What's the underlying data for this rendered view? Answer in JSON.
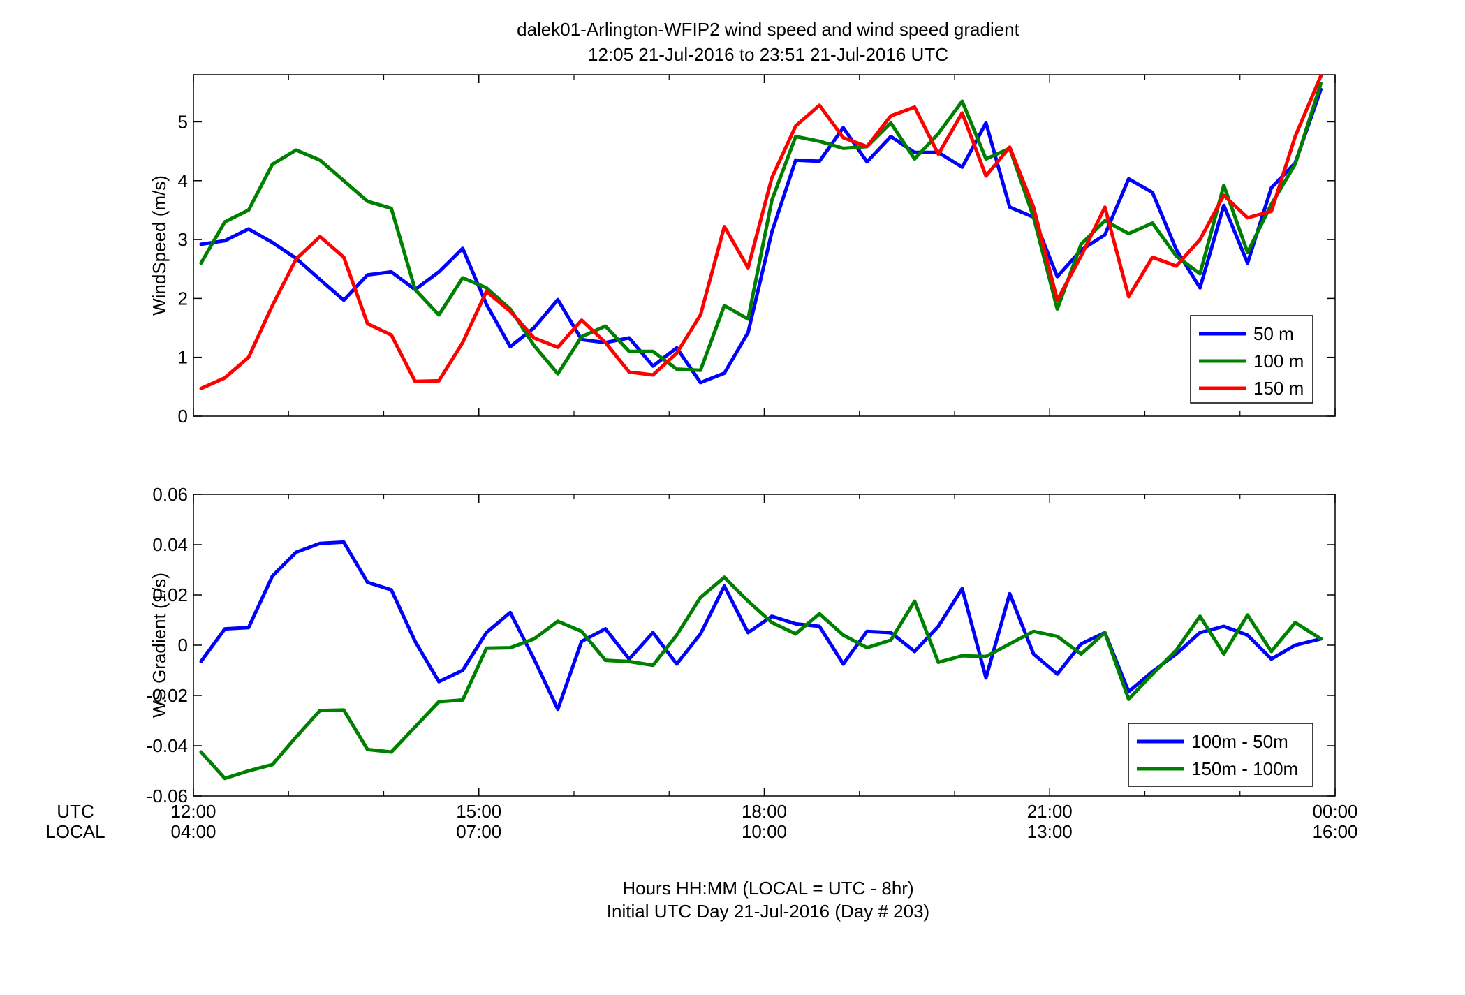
{
  "figure": {
    "title_line1": "dalek01-Arlington-WFIP2  wind speed and wind speed gradient",
    "title_line2": "12:05 21-Jul-2016 to 23:51 21-Jul-2016  UTC",
    "row_label_utc": "UTC",
    "row_label_local": "LOCAL",
    "xlabel_line1": "Hours HH:MM  (LOCAL = UTC - 8hr)",
    "xlabel_line2": "Initial UTC Day 21-Jul-2016 (Day # 203)",
    "x_ticks_utc": [
      "12:00",
      "15:00",
      "18:00",
      "21:00",
      "00:00"
    ],
    "x_ticks_local": [
      "04:00",
      "07:00",
      "10:00",
      "13:00",
      "16:00"
    ]
  },
  "chart_data": [
    {
      "type": "line",
      "title": "dalek01-Arlington-WFIP2  wind speed and wind speed gradient",
      "xlabel": "Hours HH:MM  (LOCAL = UTC - 8hr)",
      "ylabel": "WindSpeed (m/s)",
      "xlim": [
        12,
        24
      ],
      "ylim": [
        0,
        5.8
      ],
      "y_ticks": [
        "0",
        "1",
        "2",
        "3",
        "4",
        "5"
      ],
      "grid": false,
      "legend_position": "bottom-right",
      "x": [
        12.08,
        12.33,
        12.58,
        12.83,
        13.08,
        13.33,
        13.58,
        13.83,
        14.08,
        14.33,
        14.58,
        14.83,
        15.08,
        15.33,
        15.58,
        15.83,
        16.08,
        16.33,
        16.58,
        16.83,
        17.08,
        17.33,
        17.58,
        17.83,
        18.08,
        18.33,
        18.58,
        18.83,
        19.08,
        19.33,
        19.58,
        19.83,
        20.08,
        20.33,
        20.58,
        20.83,
        21.08,
        21.33,
        21.58,
        21.83,
        22.08,
        22.33,
        22.58,
        22.83,
        23.08,
        23.33,
        23.58,
        23.85
      ],
      "series": [
        {
          "name": "50 m",
          "color": "#0000ff",
          "values": [
            2.92,
            2.98,
            3.18,
            2.95,
            2.68,
            2.32,
            1.97,
            2.4,
            2.45,
            2.15,
            2.45,
            2.85,
            1.9,
            1.18,
            1.5,
            1.98,
            1.3,
            1.25,
            1.33,
            0.85,
            1.16,
            0.57,
            0.73,
            1.42,
            3.13,
            4.35,
            4.33,
            4.9,
            4.32,
            4.75,
            4.48,
            4.48,
            4.23,
            4.98,
            3.55,
            3.38,
            2.37,
            2.82,
            3.08,
            4.03,
            3.8,
            2.83,
            2.18,
            3.58,
            2.6,
            3.88,
            4.3,
            5.55
          ]
        },
        {
          "name": "100 m",
          "color": "#008000",
          "values": [
            2.6,
            3.3,
            3.5,
            4.28,
            4.52,
            4.35,
            4.0,
            3.65,
            3.53,
            2.15,
            1.72,
            2.35,
            2.18,
            1.82,
            1.2,
            0.72,
            1.35,
            1.53,
            1.1,
            1.1,
            0.8,
            0.78,
            1.88,
            1.65,
            3.67,
            4.75,
            4.67,
            4.55,
            4.58,
            4.98,
            4.37,
            4.8,
            5.35,
            4.37,
            4.55,
            3.38,
            1.82,
            2.92,
            3.32,
            3.1,
            3.28,
            2.72,
            2.42,
            3.92,
            2.78,
            3.6,
            4.28,
            5.65
          ]
        },
        {
          "name": "150 m",
          "color": "#ff0000",
          "values": [
            0.47,
            0.65,
            1.0,
            1.88,
            2.67,
            3.05,
            2.7,
            1.57,
            1.38,
            0.59,
            0.6,
            1.25,
            2.12,
            1.78,
            1.33,
            1.17,
            1.63,
            1.25,
            0.75,
            0.7,
            1.07,
            1.72,
            3.22,
            2.52,
            4.05,
            4.93,
            5.28,
            4.73,
            4.58,
            5.1,
            5.25,
            4.45,
            5.15,
            4.08,
            4.57,
            3.55,
            1.97,
            2.72,
            3.55,
            2.03,
            2.7,
            2.55,
            3.0,
            3.75,
            3.37,
            3.48,
            4.75,
            5.78
          ]
        }
      ]
    },
    {
      "type": "line",
      "xlabel": "Hours HH:MM  (LOCAL = UTC - 8hr)",
      "ylabel": "WS Gradient (1/s)",
      "xlim": [
        12,
        24
      ],
      "ylim": [
        -0.06,
        0.06
      ],
      "y_ticks": [
        "-0.06",
        "-0.04",
        "-0.02",
        "0",
        "0.02",
        "0.04",
        "0.06"
      ],
      "grid": false,
      "legend_position": "bottom-right",
      "x": [
        12.08,
        12.33,
        12.58,
        12.83,
        13.08,
        13.33,
        13.58,
        13.83,
        14.08,
        14.33,
        14.58,
        14.83,
        15.08,
        15.33,
        15.58,
        15.83,
        16.08,
        16.33,
        16.58,
        16.83,
        17.08,
        17.33,
        17.58,
        17.83,
        18.08,
        18.33,
        18.58,
        18.83,
        19.08,
        19.33,
        19.58,
        19.83,
        20.08,
        20.33,
        20.58,
        20.83,
        21.08,
        21.33,
        21.58,
        21.83,
        22.08,
        22.33,
        22.58,
        22.83,
        23.08,
        23.33,
        23.58,
        23.85
      ],
      "series": [
        {
          "name": "100m - 50m",
          "color": "#0000ff",
          "values": [
            -0.0065,
            0.0065,
            0.007,
            0.0275,
            0.037,
            0.0405,
            0.041,
            0.025,
            0.022,
            0.0015,
            -0.0145,
            -0.01,
            0.005,
            0.013,
            -0.0055,
            -0.0255,
            0.0015,
            0.0065,
            -0.0055,
            0.005,
            -0.0075,
            0.0045,
            0.0235,
            0.005,
            0.0115,
            0.0085,
            0.0075,
            -0.0075,
            0.0055,
            0.005,
            -0.0025,
            0.0075,
            0.0225,
            -0.013,
            0.0205,
            -0.0035,
            -0.0115,
            0.0005,
            0.005,
            -0.0185,
            -0.0105,
            -0.0035,
            0.005,
            0.0075,
            0.004,
            -0.0055,
            0.0,
            0.0025
          ]
        },
        {
          "name": "150m - 100m",
          "color": "#008000",
          "values": [
            -0.0425,
            -0.053,
            -0.05,
            -0.0475,
            -0.0365,
            -0.026,
            -0.0258,
            -0.0415,
            -0.0425,
            -0.0325,
            -0.0225,
            -0.0218,
            -0.0012,
            -0.001,
            0.0025,
            0.0095,
            0.0055,
            -0.006,
            -0.0065,
            -0.008,
            0.004,
            0.019,
            0.027,
            0.0175,
            0.009,
            0.0045,
            0.0125,
            0.004,
            -0.001,
            0.002,
            0.0175,
            -0.0068,
            -0.0042,
            -0.0045,
            0.0005,
            0.0055,
            0.0035,
            -0.0035,
            0.005,
            -0.0215,
            -0.0115,
            -0.002,
            0.0115,
            -0.0035,
            0.012,
            -0.0025,
            0.009,
            0.0025
          ]
        }
      ]
    }
  ]
}
